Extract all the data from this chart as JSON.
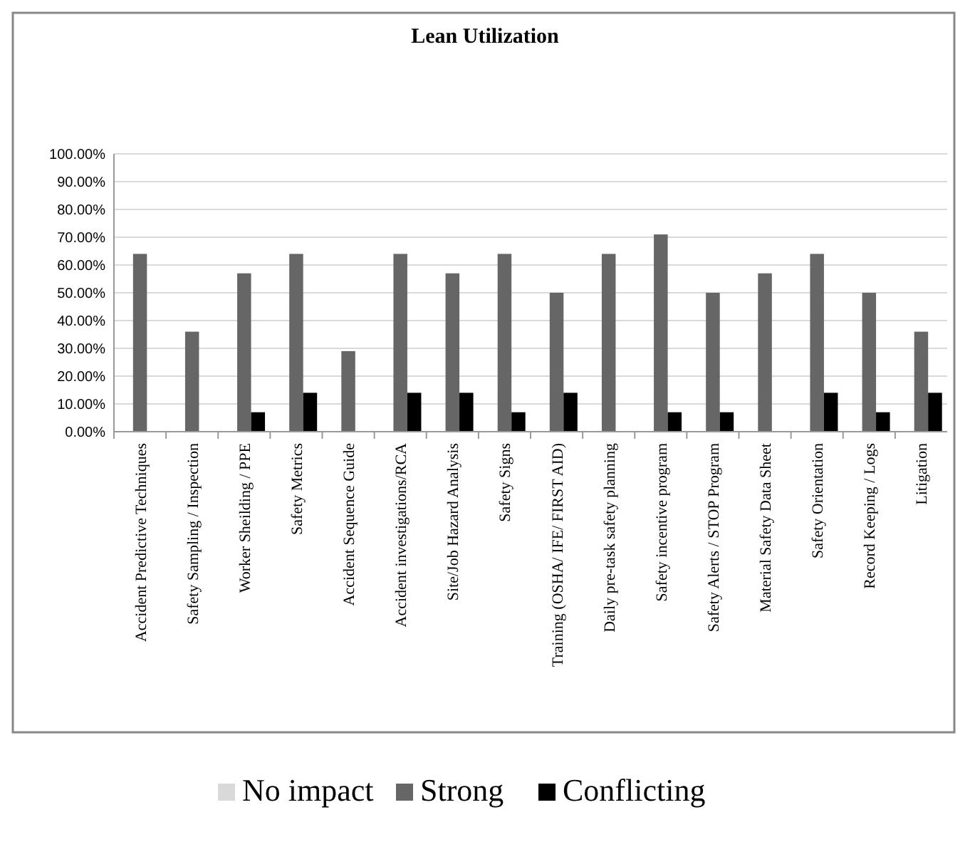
{
  "chart_data": {
    "type": "bar",
    "title": "Lean Utilization",
    "categories": [
      "Accident Predictive Techniques",
      "Safety Sampling / Inspection",
      "Worker Sheilding / PPE",
      "Safety Metrics",
      "Accident Sequence Guide",
      "Accident investigations/RCA",
      "Site/Job Hazard Analysis",
      "Safety Signs",
      "Training (OSHA/ IFE/ FIRST AID)",
      "Daily pre-task safety planning",
      "Safety incentive program",
      "Safety Alerts / STOP Program",
      "Material Safety Data Sheet",
      "Safety Orientation",
      "Record Keeping / Logs",
      "Litigation"
    ],
    "series": [
      {
        "name": "No impact",
        "color": "#d9d9d9",
        "values": [
          0,
          0,
          0,
          0,
          0,
          0,
          0,
          0,
          0,
          0,
          0,
          0,
          0,
          0,
          0,
          0
        ]
      },
      {
        "name": "Strong",
        "color": "#666666",
        "values": [
          64,
          36,
          57,
          64,
          29,
          64,
          57,
          64,
          50,
          64,
          71,
          50,
          57,
          64,
          50,
          36
        ]
      },
      {
        "name": "Conflicting",
        "color": "#000000",
        "values": [
          0,
          0,
          7,
          14,
          0,
          14,
          14,
          7,
          14,
          0,
          7,
          7,
          0,
          14,
          7,
          14
        ]
      }
    ],
    "ylim": [
      0,
      100
    ],
    "yticks": [
      {
        "value": 0,
        "label": "0.00%"
      },
      {
        "value": 10,
        "label": "10.00%"
      },
      {
        "value": 20,
        "label": "20.00%"
      },
      {
        "value": 30,
        "label": "30.00%"
      },
      {
        "value": 40,
        "label": "40.00%"
      },
      {
        "value": 50,
        "label": "50.00%"
      },
      {
        "value": 60,
        "label": "60.00%"
      },
      {
        "value": 70,
        "label": "70.00%"
      },
      {
        "value": 80,
        "label": "80.00%"
      },
      {
        "value": 90,
        "label": "90.00%"
      },
      {
        "value": 100,
        "label": "100.00%"
      }
    ],
    "grid": "y",
    "legend": "bottom"
  }
}
